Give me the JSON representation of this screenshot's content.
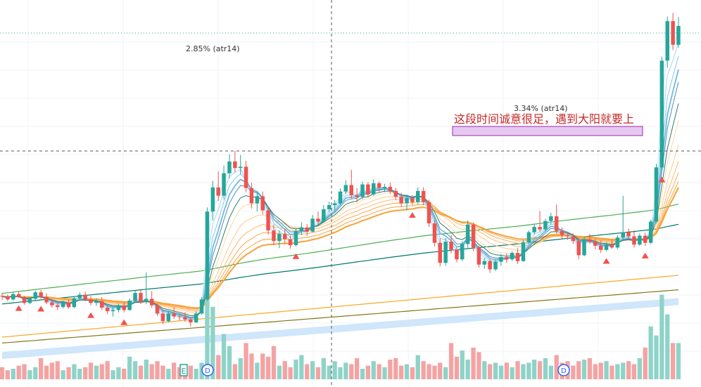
{
  "chart_data": {
    "type": "candlestick",
    "grid": true,
    "colors": {
      "up": "#26a69a",
      "down": "#ef5350",
      "volume_up": "#8fd3c8",
      "volume_down": "#f4a3a3",
      "signal_marker": "#ef5350",
      "ma_short": [
        "#c6e6f7",
        "#a7d6f0",
        "#88c7e9",
        "#6fb9e2",
        "#4e8fb3",
        "#2e7d6b"
      ],
      "ma_mid": [
        "#ffd9a6",
        "#ffc98a",
        "#ffb86d",
        "#ffa853",
        "#f7a23a",
        "#f7a23a"
      ],
      "ma_long": [
        "#4caf50",
        "#00796b",
        "#f9a825",
        "#827717"
      ],
      "band": "#cfe6fb",
      "highlight_box": "#e6c8f0"
    },
    "annotations": [
      {
        "id": "atr-left",
        "text": "2.85% (atr14)"
      },
      {
        "id": "atr-mid",
        "text": "3.34% (atr14)"
      },
      {
        "id": "note",
        "text": "这段时间诚意很足，遇到大阳就要上"
      }
    ],
    "event_markers": [
      "E",
      "D",
      "D"
    ],
    "candles": [
      [
        37,
        37.5,
        36.3,
        36.9
      ],
      [
        36.9,
        37.2,
        36.1,
        36.4
      ],
      [
        36.4,
        37.6,
        36.2,
        37.3
      ],
      [
        37.3,
        37.7,
        36.6,
        36.8
      ],
      [
        36.8,
        37,
        35.5,
        35.8
      ],
      [
        35.8,
        36.8,
        35.6,
        36.5
      ],
      [
        36.5,
        37.9,
        36.3,
        37.6
      ],
      [
        37.6,
        38,
        36.5,
        36.8
      ],
      [
        36.8,
        37.4,
        35.6,
        35.9
      ],
      [
        35.9,
        36.4,
        35,
        35.4
      ],
      [
        35.4,
        35.9,
        34.6,
        35.1
      ],
      [
        35.1,
        36.2,
        34.9,
        35.9
      ],
      [
        35.9,
        36.3,
        34.8,
        35.1
      ],
      [
        35.1,
        36.9,
        34.9,
        36.6
      ],
      [
        36.6,
        37.6,
        36.2,
        37.2
      ],
      [
        37.2,
        37.7,
        36.1,
        36.4
      ],
      [
        36.4,
        37,
        35.4,
        35.8
      ],
      [
        35.8,
        36.6,
        35.3,
        36.1
      ],
      [
        36.1,
        36.8,
        34.6,
        35
      ],
      [
        35,
        35.3,
        33.9,
        34.4
      ],
      [
        34.4,
        35,
        33.5,
        34.6
      ],
      [
        34.6,
        35.7,
        34.2,
        35.4
      ],
      [
        35.4,
        35.9,
        34.2,
        34.6
      ],
      [
        34.6,
        36.6,
        34.5,
        36.2
      ],
      [
        36.2,
        37.9,
        35.9,
        37.5
      ],
      [
        37.5,
        38,
        35.6,
        36
      ],
      [
        36,
        41,
        35.6,
        36.5
      ],
      [
        36.5,
        37.8,
        35,
        35.4
      ],
      [
        35.4,
        35.7,
        33.6,
        34
      ],
      [
        34,
        34.5,
        32.2,
        32.7
      ],
      [
        32.7,
        34.4,
        32.5,
        34
      ],
      [
        34,
        35.1,
        33.1,
        33.5
      ],
      [
        33.5,
        33.9,
        32.8,
        33.4
      ],
      [
        33.4,
        34.2,
        32.6,
        33
      ],
      [
        33,
        33.4,
        31.8,
        32.5
      ],
      [
        32.5,
        34.4,
        32.4,
        34
      ],
      [
        34,
        36.8,
        33.8,
        36.4
      ],
      [
        36.4,
        52,
        36.1,
        51.3
      ],
      [
        51.3,
        56.5,
        49.8,
        55.4
      ],
      [
        55.4,
        58.1,
        53.1,
        54
      ],
      [
        54,
        59.1,
        53.4,
        57.8
      ],
      [
        57.8,
        61,
        56.9,
        59.8
      ],
      [
        59.8,
        61.6,
        58,
        58.7
      ],
      [
        58.7,
        60.9,
        57.6,
        58.9
      ],
      [
        58.9,
        59.9,
        54.6,
        55.3
      ],
      [
        55.3,
        56.2,
        51.8,
        52.7
      ],
      [
        52.7,
        54.5,
        51.3,
        53.9
      ],
      [
        53.9,
        54.7,
        50.8,
        51.5
      ],
      [
        51.5,
        52.1,
        47.4,
        48.1
      ],
      [
        48.1,
        49.1,
        45.6,
        46.3
      ],
      [
        46.3,
        48.1,
        45.1,
        47.5
      ],
      [
        47.5,
        48.4,
        45.8,
        46.6
      ],
      [
        46.6,
        47.2,
        45,
        45.6
      ],
      [
        45.6,
        48.4,
        45.4,
        48
      ],
      [
        48,
        49.5,
        47.3,
        48.6
      ],
      [
        48.6,
        49.2,
        47.2,
        47.9
      ],
      [
        47.9,
        50.7,
        47.8,
        50.1
      ],
      [
        50.1,
        51.3,
        49,
        49.6
      ],
      [
        49.6,
        52.4,
        49.4,
        51.7
      ],
      [
        51.7,
        53,
        51.2,
        52.4
      ],
      [
        52.4,
        53.3,
        51.3,
        52.7
      ],
      [
        52.7,
        55.2,
        52.4,
        54.7
      ],
      [
        54.7,
        56.6,
        54.3,
        55.8
      ],
      [
        55.8,
        58.4,
        53.4,
        54.1
      ],
      [
        54.1,
        55.3,
        52.9,
        53.8
      ],
      [
        53.8,
        56.4,
        53.4,
        55.9
      ],
      [
        55.9,
        56.3,
        53.7,
        54.2
      ],
      [
        54.2,
        56.8,
        54,
        56.1
      ],
      [
        56.1,
        56.4,
        54.7,
        55.3
      ],
      [
        55.3,
        56,
        54.6,
        55.5
      ],
      [
        55.5,
        56.2,
        54.3,
        54.8
      ],
      [
        54.8,
        55.3,
        53.3,
        53.8
      ],
      [
        53.8,
        54.5,
        52.1,
        52.7
      ],
      [
        52.7,
        54.2,
        51.5,
        53.6
      ],
      [
        53.6,
        54.1,
        52.4,
        52.9
      ],
      [
        52.9,
        55.4,
        52.5,
        54.8
      ],
      [
        54.8,
        55.4,
        52.4,
        52.9
      ],
      [
        52.9,
        53.3,
        48.7,
        49.3
      ],
      [
        49.3,
        49.8,
        45.4,
        46
      ],
      [
        46,
        46.7,
        42,
        42.6
      ],
      [
        42.6,
        46.8,
        42.1,
        46.2
      ],
      [
        46.2,
        47.3,
        44.2,
        44.8
      ],
      [
        44.8,
        45.2,
        42.7,
        43.2
      ],
      [
        43.2,
        46.3,
        42.9,
        45.8
      ],
      [
        45.8,
        49.8,
        45,
        49.1
      ],
      [
        49.1,
        49.4,
        44.6,
        45.2
      ],
      [
        45.2,
        45.5,
        41.8,
        42.3
      ],
      [
        42.3,
        43.4,
        41.6,
        42.9
      ],
      [
        42.9,
        43.2,
        40.9,
        41.5
      ],
      [
        41.5,
        43.2,
        41.2,
        42.8
      ],
      [
        42.8,
        44.1,
        42.1,
        43.6
      ],
      [
        43.6,
        44.2,
        42.6,
        43.2
      ],
      [
        43.2,
        44.6,
        42.9,
        44.3
      ],
      [
        44.3,
        45.1,
        42.4,
        42.9
      ],
      [
        42.9,
        46.5,
        42.8,
        46.1
      ],
      [
        46.1,
        48.1,
        45.8,
        47.8
      ],
      [
        47.8,
        49.1,
        47.4,
        48.7
      ],
      [
        48.7,
        51.4,
        47.8,
        48.3
      ],
      [
        48.3,
        50.1,
        47.9,
        49.7
      ],
      [
        49.7,
        51.1,
        49.1,
        50.5
      ],
      [
        50.5,
        52.5,
        47.6,
        48
      ],
      [
        48,
        48.6,
        46.7,
        47.3
      ],
      [
        47.3,
        47.8,
        46.5,
        47.1
      ],
      [
        47.1,
        47.6,
        45.8,
        46.3
      ],
      [
        46.3,
        46.8,
        43.2,
        43.9
      ],
      [
        43.9,
        47.1,
        43.7,
        46.6
      ],
      [
        46.6,
        47.5,
        45.8,
        46.2
      ],
      [
        46.2,
        46.7,
        44.9,
        45.5
      ],
      [
        45.5,
        46.4,
        44.3,
        44.8
      ],
      [
        44.8,
        46.1,
        44.6,
        45.7
      ],
      [
        45.7,
        46.5,
        45,
        45.2
      ],
      [
        45.2,
        47.3,
        44.9,
        46.9
      ],
      [
        46.9,
        54,
        46.5,
        47.8
      ],
      [
        47.8,
        48.4,
        46.6,
        47.1
      ],
      [
        47.1,
        48.1,
        45.2,
        45.7
      ],
      [
        45.7,
        47.6,
        45.5,
        47.2
      ],
      [
        47.2,
        47.7,
        45.5,
        46
      ],
      [
        46,
        49.9,
        45.8,
        49.6
      ],
      [
        49.6,
        59.4,
        49.3,
        58.8
      ],
      [
        58.8,
        77.6,
        58.4,
        76.9
      ],
      [
        76.9,
        84.4,
        75.7,
        83.6
      ],
      [
        83.6,
        85,
        78.7,
        79.6
      ],
      [
        79.6,
        84.3,
        79.1,
        82.8
      ]
    ],
    "volume": [
      8,
      6,
      7,
      9,
      10,
      6,
      8,
      14,
      9,
      11,
      12,
      6,
      8,
      10,
      7,
      8,
      11,
      9,
      10,
      12,
      6,
      8,
      7,
      15,
      12,
      9,
      13,
      10,
      12,
      9,
      7,
      11,
      8,
      10,
      9,
      7,
      11,
      68,
      48,
      16,
      30,
      22,
      10,
      14,
      24,
      17,
      11,
      17,
      15,
      22,
      9,
      12,
      8,
      13,
      16,
      10,
      12,
      8,
      14,
      9,
      12,
      8,
      11,
      10,
      14,
      7,
      9,
      12,
      10,
      8,
      13,
      14,
      9,
      10,
      8,
      16,
      12,
      10,
      9,
      11,
      8,
      24,
      15,
      19,
      13,
      21,
      18,
      12,
      10,
      11,
      9,
      11,
      8,
      12,
      10,
      11,
      13,
      12,
      14,
      9,
      16,
      11,
      12,
      9,
      12,
      13,
      14,
      10,
      11,
      12,
      9,
      10,
      11,
      12,
      10,
      14,
      21,
      35,
      29,
      56,
      43,
      24,
      24
    ],
    "signal_markers_at": [
      3,
      7,
      16,
      22,
      53,
      74,
      109,
      116,
      119
    ]
  }
}
